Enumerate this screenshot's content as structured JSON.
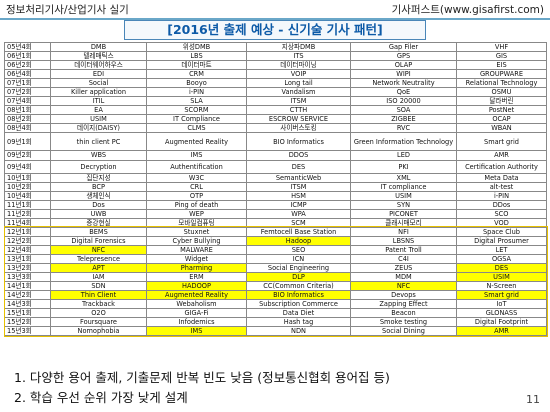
{
  "header": {
    "left": "정보처리기사/산업기사 실기",
    "right": "기사퍼스트(www.gisafirst.com)"
  },
  "title": "[2016년 출제 예상 - 신기술 기사 패턴]",
  "table": [
    {
      "id": "05년4회",
      "cells": [
        "DMB",
        "위성DMB",
        "지상파DMB",
        "Gap Filer",
        "VHF"
      ],
      "hl": []
    },
    {
      "id": "06년1회",
      "cells": [
        "텔레매틱스",
        "LBS",
        "ITS",
        "GPS",
        "GIS"
      ],
      "hl": []
    },
    {
      "id": "06년2회",
      "cells": [
        "데이터웨어하우스",
        "데이터마트",
        "데이터마이닝",
        "OLAP",
        "EIS"
      ],
      "hl": []
    },
    {
      "id": "06년4회",
      "cells": [
        "EDI",
        "CRM",
        "VOIP",
        "WIPI",
        "GROUPWARE"
      ],
      "hl": []
    },
    {
      "id": "07년1회",
      "cells": [
        "Social",
        "Booyo",
        "Long tail",
        "Network Neutrality",
        "Relational Technology"
      ],
      "hl": []
    },
    {
      "id": "07년2회",
      "cells": [
        "Killer application",
        "i-PIN",
        "Vandalism",
        "QoE",
        "OSMU"
      ],
      "hl": []
    },
    {
      "id": "07년4회",
      "cells": [
        "ITIL",
        "SLA",
        "ITSM",
        "ISO 20000",
        "달라버린"
      ],
      "hl": []
    },
    {
      "id": "08년1회",
      "cells": [
        "EA",
        "SCORM",
        "CTTH",
        "SOA",
        "PostNet"
      ],
      "hl": []
    },
    {
      "id": "08년2회",
      "cells": [
        "USIM",
        "IT Compliance",
        "ESCROW SERVICE",
        "ZIGBEE",
        "OCAP"
      ],
      "hl": []
    },
    {
      "id": "08년4회",
      "cells": [
        "데이지(DAISY)",
        "CLMS",
        "사이버스토킹",
        "RVC",
        "WBAN"
      ],
      "hl": []
    },
    {
      "id": "09년1회",
      "cells": [
        "thin client PC",
        "Augmented Reality",
        "BIO Informatics",
        "Green Information Technology",
        "Smart grid"
      ],
      "hl": [],
      "tall": 2
    },
    {
      "id": "09년2회",
      "cells": [
        "WBS",
        "IMS",
        "DDOS",
        "LED",
        "AMR"
      ],
      "hl": []
    },
    {
      "id": "09년4회",
      "cells": [
        "Decryption",
        "Authentification",
        "DES",
        "PKI",
        "Certification Authority"
      ],
      "hl": [],
      "tall": 1
    },
    {
      "id": "10년1회",
      "cells": [
        "집단지성",
        "W3C",
        "SemanticWeb",
        "XML",
        "Meta Data"
      ],
      "hl": []
    },
    {
      "id": "10년2회",
      "cells": [
        "BCP",
        "CRL",
        "ITSM",
        "IT compliance",
        "alt-test"
      ],
      "hl": []
    },
    {
      "id": "10년4회",
      "cells": [
        "생체인식",
        "OTP",
        "HSM",
        "USIM",
        "i-PIN"
      ],
      "hl": []
    },
    {
      "id": "11년1회",
      "cells": [
        "Dos",
        "Ping of death",
        "ICMP",
        "SYN",
        "DDos"
      ],
      "hl": []
    },
    {
      "id": "11년2회",
      "cells": [
        "UWB",
        "WEP",
        "WPA",
        "PICONET",
        "SCO"
      ],
      "hl": []
    },
    {
      "id": "11년4회",
      "cells": [
        "증강현실",
        "모바일컴퓨팅",
        "SCM",
        "클래시매모리",
        "VOD"
      ],
      "hl": []
    },
    {
      "id": "12년1회",
      "cells": [
        "BEMS",
        "Stuxnet",
        "Femtocell Base Station",
        "NFI",
        "Space Club"
      ],
      "hl": []
    },
    {
      "id": "12년2회",
      "cells": [
        "Digital Forensics",
        "Cyber Bullying",
        "Hadoop",
        "LBSNS",
        "Digital Prosumer"
      ],
      "hl": [
        2
      ]
    },
    {
      "id": "12년4회",
      "cells": [
        "NFC",
        "MALWARE",
        "SEO",
        "Patent Troll",
        "LET"
      ],
      "hl": [
        0
      ]
    },
    {
      "id": "13년1회",
      "cells": [
        "Telepresence",
        "Widget",
        "ICN",
        "C4I",
        "OGSA"
      ],
      "hl": []
    },
    {
      "id": "13년2회",
      "cells": [
        "APT",
        "Pharming",
        "Social Engineering",
        "ZEUS",
        "DES"
      ],
      "hl": [
        0,
        1,
        4
      ]
    },
    {
      "id": "13년3회",
      "cells": [
        "IAM",
        "ERM",
        "DLP",
        "MDM",
        "USIM"
      ],
      "hl": [
        2,
        4
      ]
    },
    {
      "id": "14년1회",
      "cells": [
        "SDN",
        "HADOOP",
        "CC(Common Criteria)",
        "NFC",
        "N-Screen"
      ],
      "hl": [
        1,
        3
      ]
    },
    {
      "id": "14년2회",
      "cells": [
        "Thin Client",
        "Augmented Reality",
        "BIO Informatics",
        "Devops",
        "Smart grid"
      ],
      "hl": [
        0,
        1,
        2,
        4
      ]
    },
    {
      "id": "14년3회",
      "cells": [
        "Trackback",
        "Webaholism",
        "Subscription Commerce",
        "Zapping Effect",
        "IoT"
      ],
      "hl": []
    },
    {
      "id": "15년1회",
      "cells": [
        "O2O",
        "GIGA-Fi",
        "Data Diet",
        "Beacon",
        "GLONASS"
      ],
      "hl": []
    },
    {
      "id": "15년2회",
      "cells": [
        "Foursquare",
        "Infodemics",
        "Hash tag",
        "Smoke testing",
        "Digital Footprint"
      ],
      "hl": []
    },
    {
      "id": "15년3회",
      "cells": [
        "Nomophobia",
        "IMS",
        "NDN",
        "Social Dining",
        "AMR"
      ],
      "hl": [
        1,
        4
      ]
    }
  ],
  "notes": [
    "1. 다양한 용어 출제, 기출문제 반복 빈도 낮음 (정보통신협회 용어집 등)",
    "2. 학습 우선 순위 가장 낮게 설계"
  ],
  "page_number": "11",
  "colors": {
    "highlight": "#ffff00",
    "box": "#e6c000",
    "title": "#0d5aa7",
    "rule": "#6aa7c8"
  }
}
